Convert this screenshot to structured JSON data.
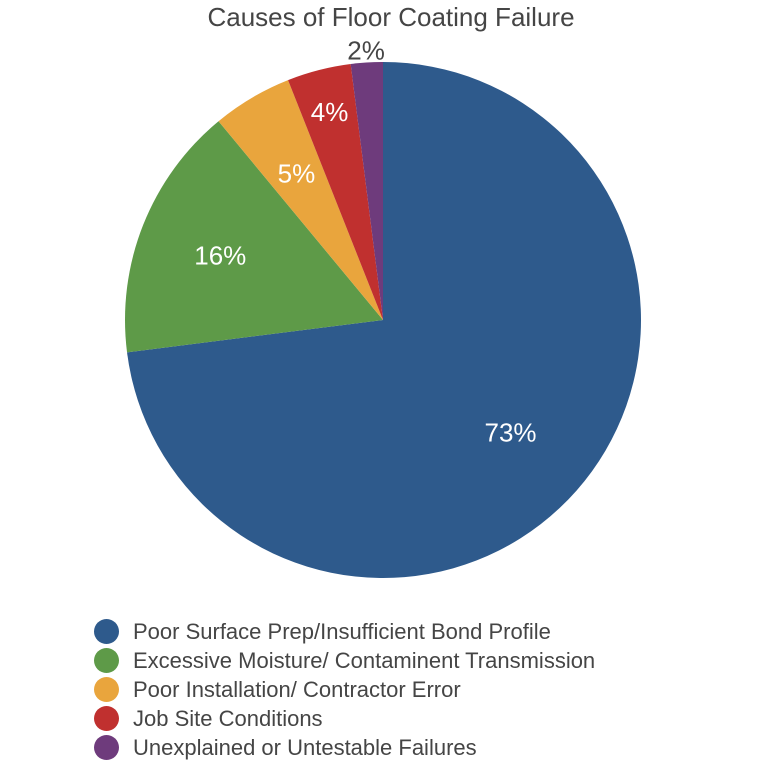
{
  "chart_data": {
    "type": "pie",
    "title": "Causes of Floor Coating Failure",
    "start_angle": "top, clockwise",
    "legend_position": "bottom",
    "slices": [
      {
        "name": "Poor Surface Prep/Insufficient Bond Profile",
        "value": 73,
        "label": "73%",
        "color": "#2E5A8C"
      },
      {
        "name": "Excessive Moisture/ Contaminent Transmission",
        "value": 16,
        "label": "16%",
        "color": "#5E9A48"
      },
      {
        "name": "Poor Installation/ Contractor Error",
        "value": 5,
        "label": "5%",
        "color": "#E9A53D"
      },
      {
        "name": "Job Site Conditions",
        "value": 4,
        "label": "4%",
        "color": "#C0302F"
      },
      {
        "name": "Unexplained or Untestable Failures",
        "value": 2,
        "label": "2%",
        "color": "#6E3B7C"
      }
    ]
  }
}
